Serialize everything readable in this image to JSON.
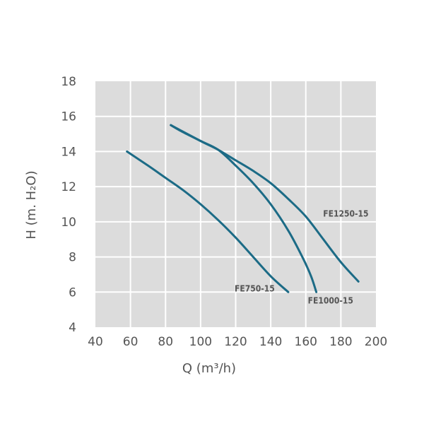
{
  "colors": {
    "plot_background": "#dcdcdc",
    "grid": "#ffffff",
    "curve": "#1c6b86",
    "text": "#555555"
  },
  "chart_data": {
    "type": "line",
    "title": "",
    "xlabel": "Q (m³/h)",
    "ylabel": "H (m. H₂O)",
    "xlim": [
      40,
      200
    ],
    "ylim": [
      4,
      18
    ],
    "x_ticks": [
      40,
      60,
      80,
      100,
      120,
      140,
      160,
      180,
      200
    ],
    "y_ticks": [
      4,
      6,
      8,
      10,
      12,
      14,
      16,
      18
    ],
    "grid": true,
    "series": [
      {
        "name": "FE750-15",
        "points": [
          [
            58,
            14.0
          ],
          [
            70,
            13.2
          ],
          [
            80,
            12.5
          ],
          [
            90,
            11.8
          ],
          [
            100,
            11.0
          ],
          [
            110,
            10.1
          ],
          [
            120,
            9.1
          ],
          [
            130,
            8.0
          ],
          [
            140,
            6.9
          ],
          [
            150,
            6.0
          ]
        ]
      },
      {
        "name": "FE1000-15",
        "points": [
          [
            83,
            15.5
          ],
          [
            90,
            15.1
          ],
          [
            100,
            14.6
          ],
          [
            110,
            14.1
          ],
          [
            120,
            13.2
          ],
          [
            130,
            12.2
          ],
          [
            140,
            11.0
          ],
          [
            150,
            9.5
          ],
          [
            158,
            8.0
          ],
          [
            163,
            6.9
          ],
          [
            166,
            6.0
          ]
        ]
      },
      {
        "name": "FE1250-15",
        "points": [
          [
            83,
            15.5
          ],
          [
            100,
            14.6
          ],
          [
            110,
            14.1
          ],
          [
            120,
            13.5
          ],
          [
            130,
            12.9
          ],
          [
            140,
            12.2
          ],
          [
            150,
            11.3
          ],
          [
            160,
            10.3
          ],
          [
            170,
            9.0
          ],
          [
            180,
            7.7
          ],
          [
            190,
            6.6
          ]
        ]
      }
    ]
  }
}
